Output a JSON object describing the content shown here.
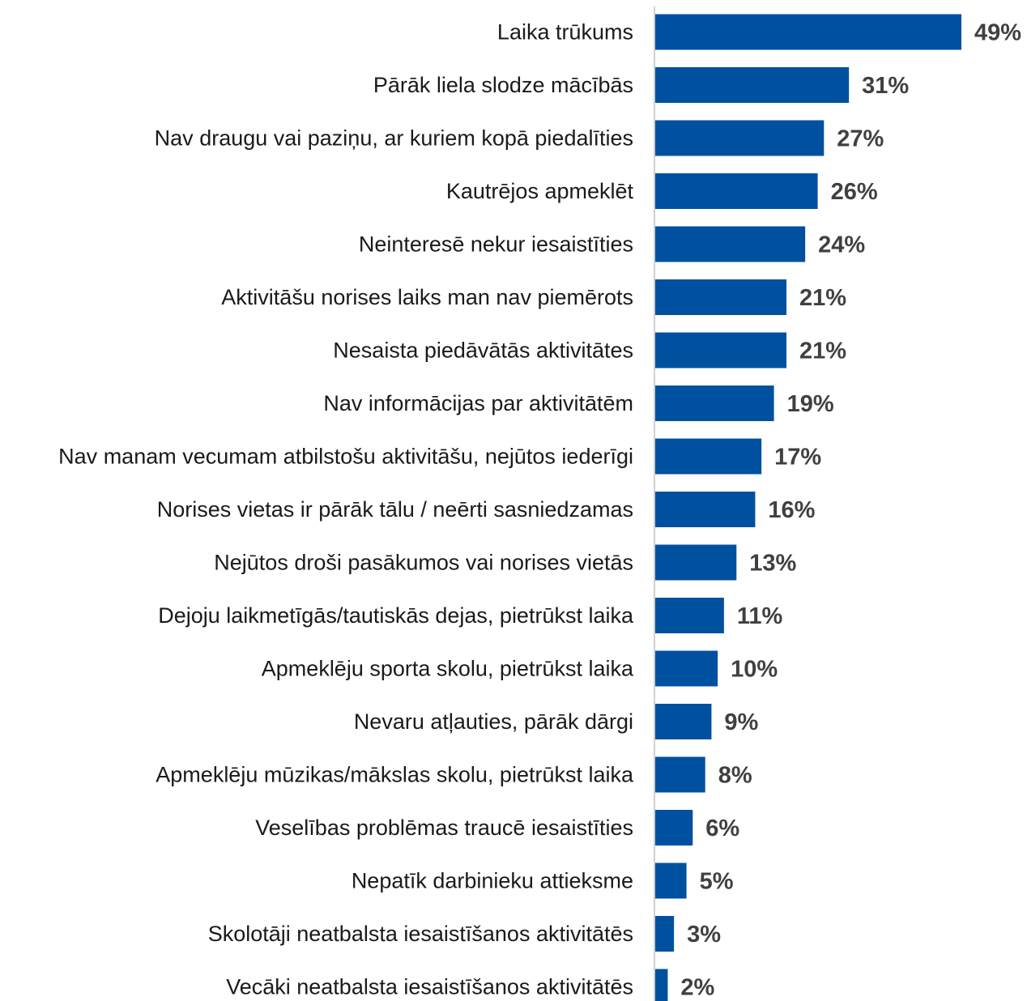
{
  "chart_data": {
    "type": "bar",
    "orientation": "horizontal",
    "categories": [
      "Laika trūkums",
      "Pārāk liela slodze mācībās",
      "Nav draugu vai paziņu, ar kuriem kopā piedalīties",
      "Kautrējos apmeklēt",
      "Neinteresē nekur iesaistīties",
      "Aktivitāšu norises laiks man nav piemērots",
      "Nesaista piedāvātās aktivitātes",
      "Nav informācijas par aktivitātēm",
      "Nav manam vecumam atbilstošu aktivitāšu, nejūtos iederīgi",
      "Norises vietas ir pārāk tālu / neērti sasniedzamas",
      "Nejūtos droši pasākumos vai norises vietās",
      "Dejoju laikmetīgās/tautiskās dejas, pietrūkst laika",
      "Apmeklēju sporta skolu, pietrūkst laika",
      "Nevaru atļauties, pārāk dārgi",
      "Apmeklēju mūzikas/mākslas skolu, pietrūkst laika",
      "Veselības problēmas traucē iesaistīties",
      "Nepatīk darbinieku attieksme",
      "Skolotāji neatbalsta iesaistīšanos aktivitātēs",
      "Vecāki neatbalsta iesaistīšanos aktivitātēs"
    ],
    "values": [
      49,
      31,
      27,
      26,
      24,
      21,
      21,
      19,
      17,
      16,
      13,
      11,
      10,
      9,
      8,
      6,
      5,
      3,
      2
    ],
    "value_labels": [
      "49%",
      "31%",
      "27%",
      "26%",
      "24%",
      "21%",
      "21%",
      "19%",
      "17%",
      "16%",
      "13%",
      "11%",
      "10%",
      "9%",
      "8%",
      "6%",
      "5%",
      "3%",
      "2%"
    ],
    "xlim": [
      0,
      49
    ],
    "grid": false,
    "legend": "none",
    "bar_color": "#0050a0",
    "axis_color": "#d0d0d0",
    "value_label_color": "#404040"
  }
}
